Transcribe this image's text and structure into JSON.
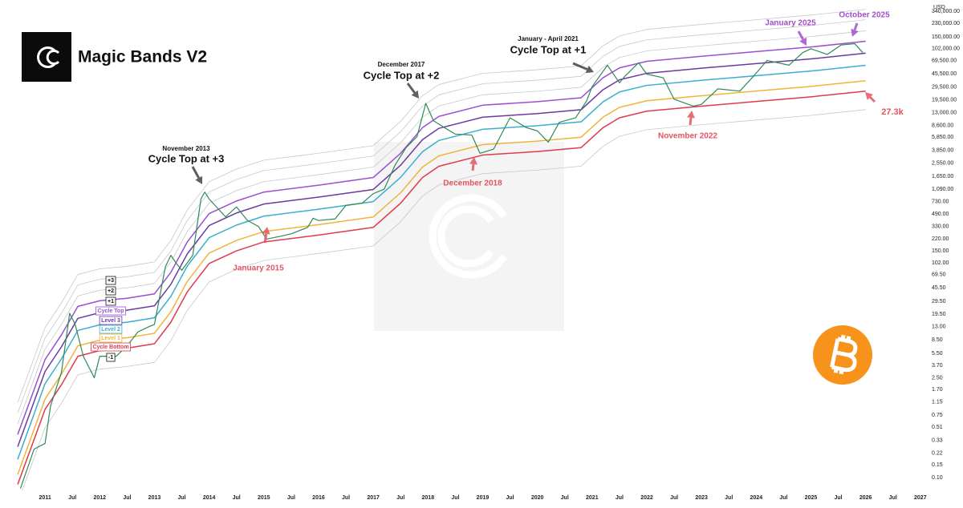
{
  "chart_data": {
    "type": "line",
    "title": "Magic Bands V2",
    "y_unit": "USD",
    "log_y": true,
    "grid": false,
    "xlim": [
      2010.47,
      2027.12
    ],
    "ylim": [
      0.066,
      400000
    ],
    "xticks": [
      2011,
      {
        "value": 2011.5,
        "label": "Jul"
      },
      2012,
      {
        "value": 2012.5,
        "label": "Jul"
      },
      2013,
      {
        "value": 2013.5,
        "label": "Jul"
      },
      2014,
      {
        "value": 2014.5,
        "label": "Jul"
      },
      2015,
      {
        "value": 2015.5,
        "label": "Jul"
      },
      2016,
      {
        "value": 2016.5,
        "label": "Jul"
      },
      2017,
      {
        "value": 2017.5,
        "label": "Jul"
      },
      2018,
      {
        "value": 2018.5,
        "label": "Jul"
      },
      2019,
      {
        "value": 2019.5,
        "label": "Jul"
      },
      2020,
      {
        "value": 2020.5,
        "label": "Jul"
      },
      2021,
      {
        "value": 2021.5,
        "label": "Jul"
      },
      2022,
      {
        "value": 2022.5,
        "label": "Jul"
      },
      2023,
      {
        "value": 2023.5,
        "label": "Jul"
      },
      2024,
      {
        "value": 2024.5,
        "label": "Jul"
      },
      2025,
      {
        "value": 2025.5,
        "label": "Jul"
      },
      2026,
      {
        "value": 2026.5,
        "label": "Jul"
      },
      2027
    ],
    "yticks": [
      {
        "value": 340000,
        "label": "340,000.00"
      },
      {
        "value": 230000,
        "label": "230,000.00"
      },
      {
        "value": 150000,
        "label": "150,000.00"
      },
      {
        "value": 102000,
        "label": "102,000.00"
      },
      {
        "value": 69500,
        "label": "69,500.00"
      },
      {
        "value": 45500,
        "label": "45,500.00"
      },
      {
        "value": 29500,
        "label": "29,500.00"
      },
      {
        "value": 19500,
        "label": "19,500.00"
      },
      {
        "value": 13000,
        "label": "13,000.00"
      },
      {
        "value": 8600,
        "label": "8,600.00"
      },
      {
        "value": 5850,
        "label": "5,850.00"
      },
      {
        "value": 3850,
        "label": "3,850.00"
      },
      {
        "value": 2550,
        "label": "2,550.00"
      },
      {
        "value": 1650,
        "label": "1,650.00"
      },
      {
        "value": 1090,
        "label": "1,090.00"
      },
      {
        "value": 730,
        "label": "730.00"
      },
      {
        "value": 490,
        "label": "490.00"
      },
      {
        "value": 330,
        "label": "330.00"
      },
      {
        "value": 220,
        "label": "220.00"
      },
      {
        "value": 150,
        "label": "150.00"
      },
      {
        "value": 102,
        "label": "102.00"
      },
      {
        "value": 69.5,
        "label": "69.50"
      },
      {
        "value": 45.5,
        "label": "45.50"
      },
      {
        "value": 29.5,
        "label": "29.50"
      },
      {
        "value": 19.5,
        "label": "19.50"
      },
      {
        "value": 13,
        "label": "13.00"
      },
      {
        "value": 8.5,
        "label": "8.50"
      },
      {
        "value": 5.5,
        "label": "5.50"
      },
      {
        "value": 3.7,
        "label": "3.70"
      },
      {
        "value": 2.5,
        "label": "2.50"
      },
      {
        "value": 1.7,
        "label": "1.70"
      },
      1.15,
      0.75,
      0.51,
      0.33,
      0.22,
      0.15,
      {
        "value": 0.1,
        "label": "0.10"
      }
    ],
    "x": [
      2010.5,
      2011.0,
      2011.3,
      2011.6,
      2012.0,
      2012.5,
      2013.0,
      2013.3,
      2013.6,
      2014.0,
      2014.5,
      2015.0,
      2016.0,
      2017.0,
      2017.5,
      2017.9,
      2018.2,
      2019.0,
      2020.0,
      2020.8,
      2021.2,
      2021.5,
      2022.0,
      2023.0,
      2024.0,
      2025.0,
      2026.0
    ],
    "series": [
      {
        "name": "+3",
        "color": "#c8c8c8",
        "values": [
          1.12,
          12.6,
          28,
          70,
          84,
          91,
          105,
          210,
          560,
          1400,
          2100,
          2800,
          3500,
          4480,
          9800,
          22400,
          32200,
          46200,
          51800,
          58800,
          112000,
          154000,
          190400,
          224000,
          260400,
          302400,
          364000
        ]
      },
      {
        "name": "+2",
        "color": "#c8c8c8",
        "values": [
          0.8,
          9,
          20,
          50,
          60,
          65,
          75,
          150,
          400,
          1000,
          1500,
          2000,
          2500,
          3200,
          7000,
          16000,
          23000,
          33000,
          37000,
          42000,
          80000,
          110000,
          136000,
          160000,
          186000,
          216000,
          260000
        ]
      },
      {
        "name": "+1",
        "color": "#c8c8c8",
        "values": [
          0.56,
          6.3,
          14,
          35,
          42,
          45.5,
          52.5,
          105,
          280,
          700,
          1050,
          1400,
          1750,
          2240,
          4900,
          11200,
          16100,
          23100,
          25900,
          29400,
          56000,
          77000,
          95200,
          112000,
          130200,
          151200,
          182000
        ]
      },
      {
        "name": "Cycle Top",
        "color": "#9b4fd0",
        "values": [
          0.4,
          4.5,
          10,
          25,
          30,
          32.5,
          37.5,
          75,
          200,
          500,
          750,
          1000,
          1250,
          1600,
          3500,
          8000,
          11500,
          16500,
          18500,
          21000,
          40000,
          55000,
          68000,
          80000,
          93000,
          108000,
          130000
        ]
      },
      {
        "name": "Level 3",
        "color": "#6b3aa0",
        "values": [
          0.27,
          3.06,
          6.8,
          17,
          20.4,
          22.1,
          25.5,
          51,
          136,
          340,
          510,
          680,
          850,
          1088,
          2380,
          5440,
          7820,
          11220,
          12580,
          14280,
          27200,
          37400,
          46240,
          54400,
          63240,
          73440,
          88400
        ]
      },
      {
        "name": "Level 2",
        "color": "#3aaed0",
        "values": [
          0.18,
          2.07,
          4.6,
          11.5,
          13.8,
          15,
          17.3,
          34.5,
          92,
          230,
          345,
          460,
          575,
          736,
          1610,
          3680,
          5290,
          7590,
          8510,
          9660,
          18400,
          25300,
          31280,
          36800,
          42780,
          49680,
          59800
        ]
      },
      {
        "name": "Level 1",
        "color": "#f0b43c",
        "values": [
          0.11,
          1.26,
          2.8,
          7,
          8.4,
          9.1,
          10.5,
          21,
          56,
          140,
          210,
          280,
          350,
          448,
          980,
          2240,
          3220,
          4620,
          5180,
          5880,
          11200,
          15400,
          19040,
          22400,
          26040,
          30240,
          36400
        ]
      },
      {
        "name": "Cycle Bottom",
        "color": "#e03a4c",
        "values": [
          0.08,
          0.9,
          2,
          5,
          6,
          6.5,
          7.5,
          15,
          40,
          100,
          150,
          200,
          250,
          320,
          700,
          1600,
          2300,
          3300,
          3700,
          4200,
          8000,
          11000,
          13600,
          16000,
          18600,
          21600,
          26000
        ]
      },
      {
        "name": "-1",
        "color": "#c8c8c8",
        "values": [
          0.044,
          0.5,
          1.1,
          2.75,
          3.3,
          3.6,
          4.1,
          8.3,
          22,
          55,
          83,
          110,
          138,
          176,
          385,
          880,
          1265,
          1815,
          2035,
          2310,
          4400,
          6050,
          7480,
          8800,
          10230,
          11880,
          14300
        ]
      },
      {
        "color": "#2e8b57",
        "x": [
          2010.55,
          2010.8,
          2011.0,
          2011.1,
          2011.3,
          2011.45,
          2011.55,
          2011.7,
          2011.9,
          2012.0,
          2012.3,
          2012.5,
          2012.7,
          2012.9,
          2013.0,
          2013.2,
          2013.3,
          2013.4,
          2013.5,
          2013.7,
          2013.85,
          2013.92,
          2014.0,
          2014.15,
          2014.3,
          2014.5,
          2014.7,
          2014.9,
          2015.05,
          2015.3,
          2015.5,
          2015.8,
          2015.9,
          2016.0,
          2016.3,
          2016.5,
          2016.8,
          2017.0,
          2017.2,
          2017.4,
          2017.6,
          2017.8,
          2017.96,
          2018.1,
          2018.3,
          2018.5,
          2018.8,
          2018.95,
          2019.2,
          2019.5,
          2019.8,
          2020.0,
          2020.2,
          2020.4,
          2020.7,
          2020.9,
          2021.0,
          2021.28,
          2021.5,
          2021.6,
          2021.85,
          2022.0,
          2022.3,
          2022.5,
          2022.85,
          2023.0,
          2023.3,
          2023.7,
          2023.95,
          2024.2,
          2024.6,
          2024.85,
          2025.0,
          2025.3,
          2025.55,
          2025.8,
          2025.95
        ],
        "values": [
          0.07,
          0.25,
          0.3,
          1.0,
          3,
          20,
          14,
          5,
          2.5,
          5,
          5,
          7,
          11,
          13,
          14,
          90,
          130,
          100,
          80,
          130,
          800,
          1000,
          800,
          600,
          450,
          620,
          400,
          330,
          220,
          240,
          260,
          320,
          430,
          400,
          420,
          650,
          700,
          950,
          1100,
          2400,
          4200,
          6000,
          17500,
          10000,
          8000,
          6500,
          6300,
          3500,
          4000,
          11000,
          8000,
          7200,
          5000,
          9500,
          11000,
          19000,
          30000,
          60000,
          34000,
          42000,
          65000,
          45000,
          40000,
          20000,
          16000,
          17000,
          28000,
          26000,
          42000,
          70000,
          60000,
          90000,
          102000,
          85000,
          115000,
          120000,
          90000
        ]
      }
    ],
    "annotations": [
      {
        "date": "November 2013",
        "text": "Cycle Top at +3",
        "color": "#111111"
      },
      {
        "date": "December 2017",
        "text": "Cycle Top at +2",
        "color": "#111111"
      },
      {
        "date": "January - April 2021",
        "text": "Cycle Top at +1",
        "color": "#111111"
      },
      {
        "text": "January 2015",
        "color": "#e25560"
      },
      {
        "text": "December 2018",
        "color": "#e25560"
      },
      {
        "text": "November 2022",
        "color": "#e25560"
      },
      {
        "text": "27.3k",
        "color": "#e25560"
      },
      {
        "text": "January 2025",
        "color": "#a24fcb"
      },
      {
        "text": "October 2025",
        "color": "#a24fcb"
      }
    ]
  }
}
